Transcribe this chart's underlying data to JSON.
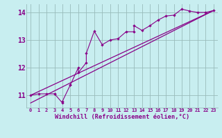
{
  "xlabel": "Windchill (Refroidissement éolien,°C)",
  "bg_color": "#c8eef0",
  "line_color": "#880088",
  "grid_color": "#99bbbb",
  "xlim": [
    -0.5,
    23.5
  ],
  "ylim": [
    10.55,
    14.3
  ],
  "yticks": [
    11,
    12,
    13,
    14
  ],
  "xticks": [
    0,
    1,
    2,
    3,
    4,
    5,
    6,
    7,
    8,
    9,
    10,
    11,
    12,
    13,
    14,
    15,
    16,
    17,
    18,
    19,
    20,
    21,
    22,
    23
  ],
  "scatter_x": [
    0,
    1,
    2,
    3,
    3,
    4,
    4,
    5,
    5,
    6,
    6,
    7,
    7,
    8,
    9,
    10,
    11,
    12,
    13,
    13,
    14,
    15,
    16,
    17,
    18,
    19,
    20,
    21,
    22,
    23
  ],
  "scatter_y": [
    11.0,
    11.05,
    11.05,
    11.05,
    11.05,
    10.72,
    10.78,
    11.38,
    11.38,
    12.0,
    11.82,
    12.18,
    12.52,
    13.32,
    12.83,
    13.0,
    13.05,
    13.3,
    13.3,
    13.52,
    13.35,
    13.52,
    13.72,
    13.87,
    13.9,
    14.12,
    14.05,
    14.0,
    14.0,
    14.07
  ],
  "line1_x": [
    0,
    23
  ],
  "line1_y": [
    11.0,
    14.07
  ],
  "line2_x": [
    0,
    23
  ],
  "line2_y": [
    10.72,
    14.07
  ]
}
